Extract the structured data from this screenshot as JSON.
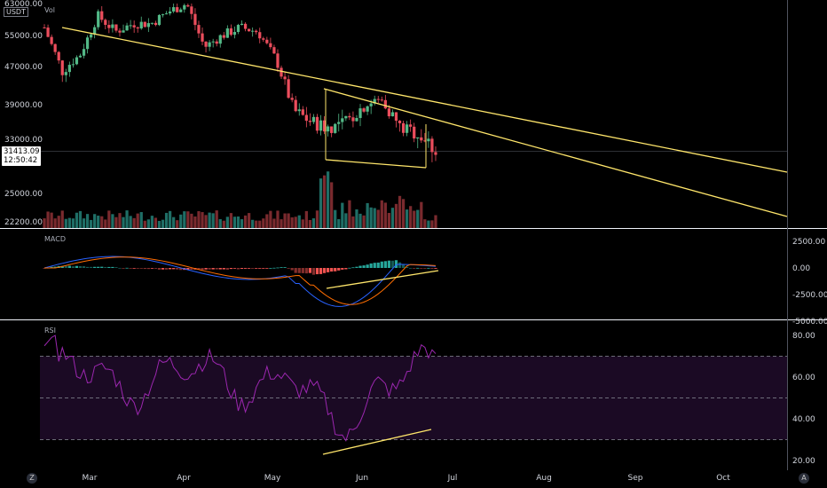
{
  "chart_data": [
    {
      "type": "candlestick",
      "pane": "price",
      "quote_unit": "USDT",
      "volume_label": "Vol",
      "y_ticks": [
        "63000.00",
        "55000.00",
        "47000.00",
        "39000.00",
        "33000.00",
        "25000.00",
        "22200.00"
      ],
      "y_tick_values": [
        63000,
        55000,
        47000,
        39000,
        33000,
        25000,
        22200
      ],
      "last_price": "31413.09",
      "countdown": "12:50:42",
      "x_labels": [
        "Mar",
        "Apr",
        "May",
        "Jun",
        "Jul",
        "Aug",
        "Sep",
        "Oct"
      ],
      "ohlc_approx": {
        "x": [
          "Feb 20",
          "Feb 27",
          "Mar 6",
          "Mar 13",
          "Mar 20",
          "Mar 27",
          "Apr 3",
          "Apr 10",
          "Apr 14",
          "Apr 20",
          "Apr 27",
          "May 4",
          "May 10",
          "May 13",
          "May 19",
          "May 22",
          "May 29",
          "Jun 5",
          "Jun 12",
          "Jun 15",
          "Jun 20",
          "Jun 24",
          "Jun 26"
        ],
        "close": [
          57000,
          46000,
          50000,
          60000,
          56000,
          58000,
          58000,
          61000,
          63000,
          52000,
          55000,
          57000,
          56000,
          49000,
          38000,
          36000,
          35000,
          36000,
          39000,
          40000,
          35000,
          34000,
          31413
        ]
      },
      "trendlines": [
        "descending resistance from Feb high",
        "descending resistance from May high",
        "horizontal support ~30500"
      ],
      "colors": {
        "up": "#26a69a",
        "down": "#ef5350",
        "up_candle": "#53b987",
        "down_candle": "#eb4d5c",
        "trendline": "#ffe66b",
        "volume_up": "#1f6e66",
        "volume_down": "#7a2a2e"
      }
    },
    {
      "type": "histogram+line",
      "pane": "macd",
      "label": "MACD",
      "y_ticks": [
        "2500.00",
        "0.00",
        "-2500.00",
        "-5000.00"
      ],
      "y_tick_values": [
        2500,
        0,
        -2500,
        -5000
      ],
      "colors": {
        "macd_line": "#2962ff",
        "signal_line": "#ff6d00",
        "hist_pos": "#26a69a",
        "hist_neg": "#ef5350"
      }
    },
    {
      "type": "line",
      "pane": "rsi",
      "label": "RSI",
      "y_ticks": [
        "80.00",
        "60.00",
        "40.00",
        "20.00"
      ],
      "y_tick_values": [
        80,
        60,
        40,
        20
      ],
      "bands": [
        70,
        50,
        30
      ],
      "colors": {
        "rsi_line": "#9c27b0",
        "band_fill": "#1b0a24"
      }
    }
  ],
  "ui": {
    "corner_left": "Z",
    "corner_right": "A"
  }
}
